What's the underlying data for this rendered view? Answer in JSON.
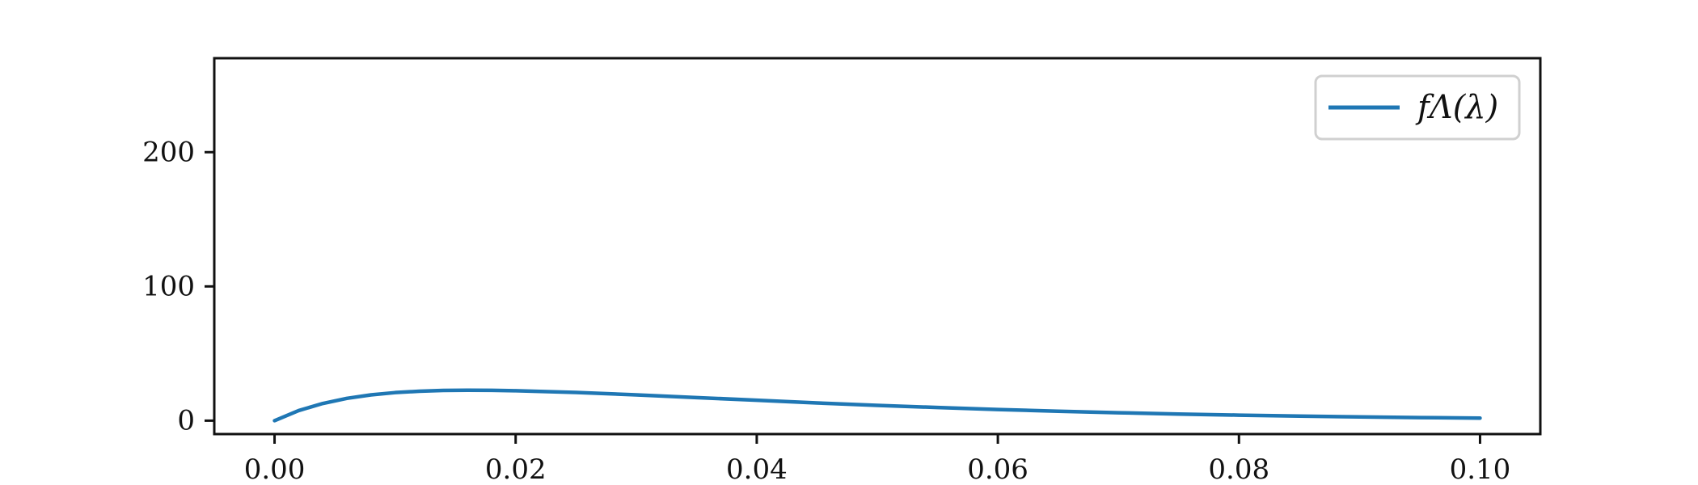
{
  "chart_data": {
    "type": "line",
    "title": "",
    "xlabel": "",
    "ylabel": "",
    "xlim": [
      -0.005,
      0.105
    ],
    "ylim": [
      -10,
      270
    ],
    "x_ticks": [
      0.0,
      0.02,
      0.04,
      0.06,
      0.08,
      0.1
    ],
    "x_tick_labels": [
      "0.00",
      "0.02",
      "0.04",
      "0.06",
      "0.08",
      "0.10"
    ],
    "y_ticks": [
      0,
      100,
      200
    ],
    "y_tick_labels": [
      "0",
      "100",
      "200"
    ],
    "grid": false,
    "legend": {
      "position": "top-right",
      "entries": [
        {
          "label": "fΛ(λ)",
          "color": "#1f77b4"
        }
      ]
    },
    "series": [
      {
        "name": "fΛ(λ)",
        "color": "#1f77b4",
        "x": [
          0.0,
          0.002,
          0.004,
          0.006,
          0.008,
          0.01,
          0.012,
          0.014,
          0.016,
          0.018,
          0.02,
          0.025,
          0.03,
          0.035,
          0.04,
          0.045,
          0.05,
          0.055,
          0.06,
          0.065,
          0.07,
          0.075,
          0.08,
          0.085,
          0.09,
          0.095,
          0.1
        ],
        "y": [
          0.0,
          7.5,
          12.8,
          16.6,
          19.2,
          20.9,
          21.9,
          22.5,
          22.7,
          22.6,
          22.3,
          21.0,
          19.2,
          17.2,
          15.2,
          13.2,
          11.4,
          9.8,
          8.3,
          7.0,
          5.9,
          4.9,
          4.1,
          3.4,
          2.8,
          2.3,
          1.9
        ]
      }
    ]
  }
}
